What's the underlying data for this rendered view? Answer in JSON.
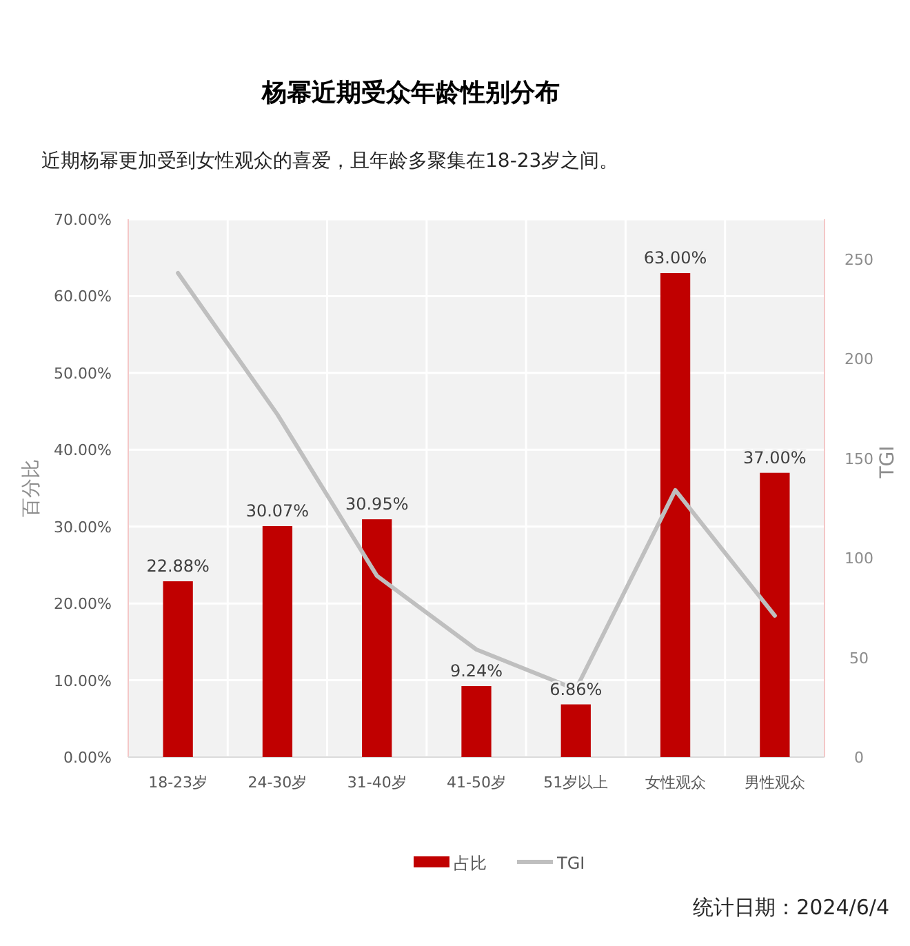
{
  "chart_data": {
    "type": "bar",
    "title": "杨幂近期受众年龄性别分布",
    "subtitle": "近期杨幂更加受到女性观众的喜爱，且年龄多聚集在18-23岁之间。",
    "ylabel": "百分比",
    "y2label": "TGI",
    "categories": [
      "18-23岁",
      "24-30岁",
      "31-40岁",
      "41-50岁",
      "51岁以上",
      "女性观众",
      "男性观众"
    ],
    "series": [
      {
        "name": "占比",
        "color": "#c00000",
        "values": [
          22.88,
          30.07,
          30.95,
          9.24,
          6.86,
          63.0,
          37.0
        ],
        "value_labels": [
          "22.88%",
          "30.07%",
          "30.95%",
          "9.24%",
          "6.86%",
          "63.00%",
          "37.00%"
        ]
      },
      {
        "name": "TGI",
        "type": "line",
        "axis": "y2",
        "color": "#bfbfbf",
        "values": [
          243,
          172,
          91,
          54,
          34,
          134,
          71
        ]
      }
    ],
    "ylim": [
      0,
      70
    ],
    "yticks": [
      {
        "value": 0,
        "label": "0.00%"
      },
      {
        "value": 10,
        "label": "10.00%"
      },
      {
        "value": 20,
        "label": "20.00%"
      },
      {
        "value": 30,
        "label": "30.00%"
      },
      {
        "value": 40,
        "label": "40.00%"
      },
      {
        "value": 50,
        "label": "50.00%"
      },
      {
        "value": 60,
        "label": "60.00%"
      },
      {
        "value": 70,
        "label": "70.00%"
      }
    ],
    "y2lim": [
      0,
      270
    ],
    "y2ticks": [
      0,
      50,
      100,
      150,
      200,
      250
    ],
    "grid": true,
    "legend": "bottom",
    "marker": "none",
    "line_style": "solid",
    "annotations": [
      "统计日期：2024/6/4"
    ]
  }
}
